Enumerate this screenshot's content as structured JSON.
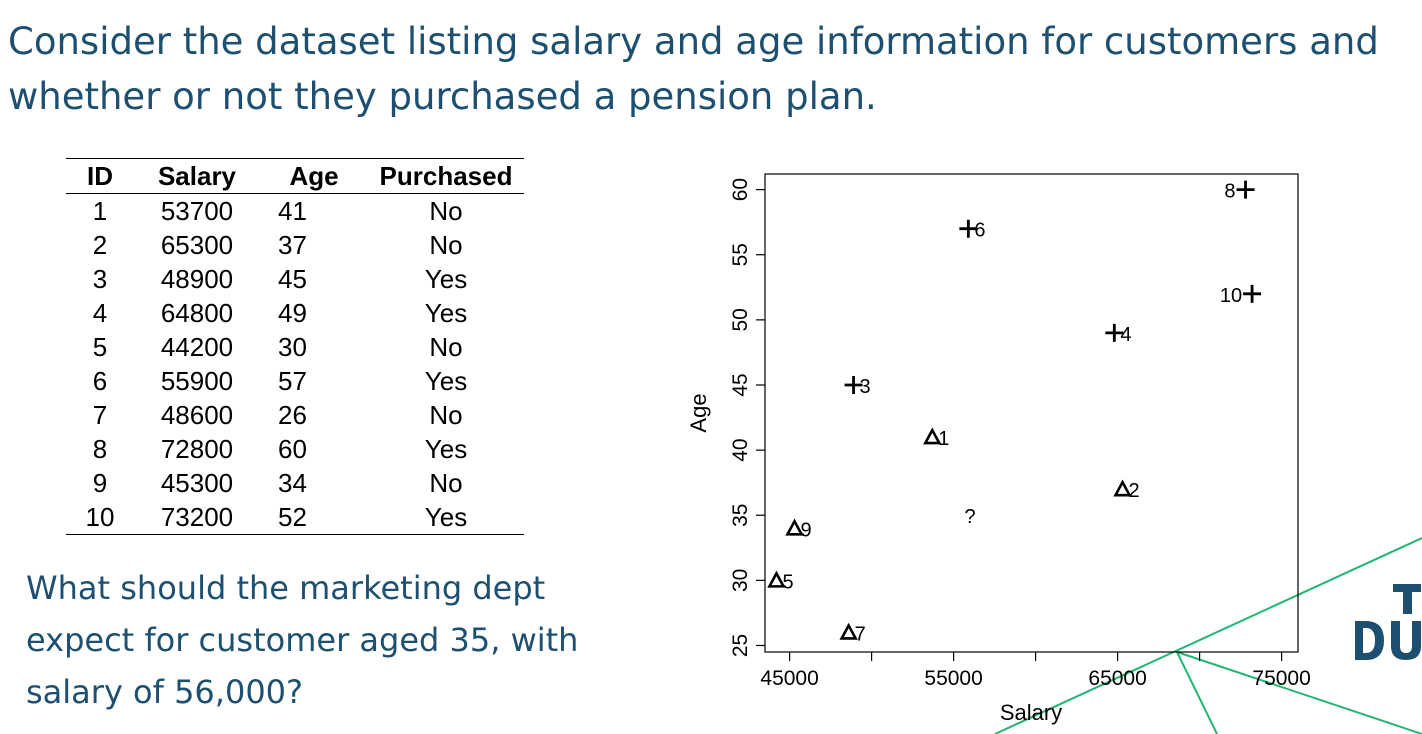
{
  "heading": "Consider the dataset listing salary and age information for customers and whether or not they purchased a pension plan.",
  "question": "What should the marketing dept expect for customer aged 35, with salary of 56,000?",
  "table": {
    "headers": [
      "ID",
      "Salary",
      "Age",
      "Purchased"
    ],
    "rows": [
      [
        "1",
        "53700",
        "41",
        "No"
      ],
      [
        "2",
        "65300",
        "37",
        "No"
      ],
      [
        "3",
        "48900",
        "45",
        "Yes"
      ],
      [
        "4",
        "64800",
        "49",
        "Yes"
      ],
      [
        "5",
        "44200",
        "30",
        "No"
      ],
      [
        "6",
        "55900",
        "57",
        "Yes"
      ],
      [
        "7",
        "48600",
        "26",
        "No"
      ],
      [
        "8",
        "72800",
        "60",
        "Yes"
      ],
      [
        "9",
        "45300",
        "34",
        "No"
      ],
      [
        "10",
        "73200",
        "52",
        "Yes"
      ]
    ]
  },
  "colors": {
    "heading_text": "#1d5070",
    "accent_line": "#22b573",
    "logo": "#1d5070"
  },
  "logo": {
    "icon": "dtu-logo",
    "text": "DTU"
  },
  "chart_data": {
    "type": "scatter",
    "title": "",
    "xlabel": "Salary",
    "ylabel": "Age",
    "xlim": [
      43500,
      76000
    ],
    "ylim": [
      24.5,
      61.2
    ],
    "x_ticks": [
      45000,
      55000,
      65000,
      75000
    ],
    "x_tick_labels": [
      "45000",
      "55000",
      "65000",
      "75000"
    ],
    "x_minor_ticks": [
      50000,
      60000,
      70000
    ],
    "y_ticks": [
      25,
      30,
      35,
      40,
      45,
      50,
      55,
      60
    ],
    "y_tick_labels": [
      "25",
      "30",
      "35",
      "40",
      "45",
      "50",
      "55",
      "60"
    ],
    "grid": false,
    "series": [
      {
        "marker": "triangle",
        "points": [
          {
            "x": 53700,
            "y": 41,
            "label": "1"
          },
          {
            "x": 65300,
            "y": 37,
            "label": "2"
          },
          {
            "x": 44200,
            "y": 30,
            "label": "5"
          },
          {
            "x": 48600,
            "y": 26,
            "label": "7"
          },
          {
            "x": 45300,
            "y": 34,
            "label": "9"
          }
        ]
      },
      {
        "marker": "plus",
        "points": [
          {
            "x": 48900,
            "y": 45,
            "label": "3"
          },
          {
            "x": 64800,
            "y": 49,
            "label": "4"
          },
          {
            "x": 55900,
            "y": 57,
            "label": "6"
          },
          {
            "x": 72800,
            "y": 60,
            "label": "8"
          },
          {
            "x": 73200,
            "y": 52,
            "label": "10"
          }
        ]
      }
    ],
    "query_point": {
      "x": 56000,
      "y": 35,
      "label": "?"
    }
  }
}
